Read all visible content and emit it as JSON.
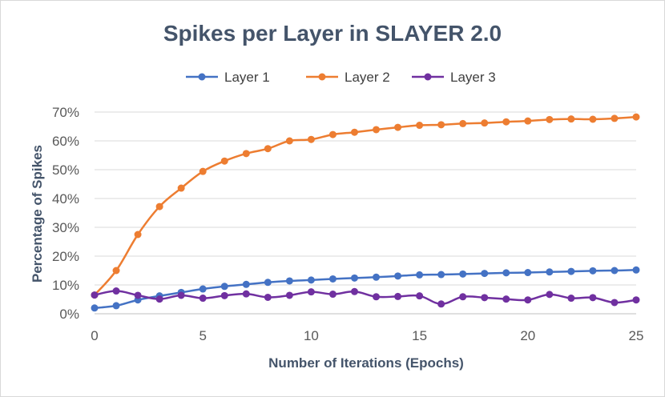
{
  "chart_data": {
    "type": "line",
    "title": "Spikes per Layer in SLAYER 2.0",
    "xlabel": "Number of Iterations (Epochs)",
    "ylabel": "Percentage of Spikes",
    "x": [
      0,
      1,
      2,
      3,
      4,
      5,
      6,
      7,
      8,
      9,
      10,
      11,
      12,
      13,
      14,
      15,
      16,
      17,
      18,
      19,
      20,
      21,
      22,
      23,
      24,
      25
    ],
    "xlim": [
      0,
      25
    ],
    "ylim": [
      0,
      70
    ],
    "xticks": [
      0,
      5,
      10,
      15,
      20,
      25
    ],
    "xtick_labels": [
      "0",
      "5",
      "10",
      "15",
      "20",
      "25"
    ],
    "yticks": [
      0,
      10,
      20,
      30,
      40,
      50,
      60,
      70
    ],
    "ytick_labels": [
      "0%",
      "10%",
      "20%",
      "30%",
      "40%",
      "50%",
      "60%",
      "70%"
    ],
    "grid": "horizontal",
    "legend_position": "top",
    "series": [
      {
        "name": "Layer 1",
        "color": "#4472c4",
        "values": [
          2.0,
          2.8,
          4.8,
          6.2,
          7.4,
          8.6,
          9.5,
          10.2,
          10.9,
          11.4,
          11.7,
          12.1,
          12.4,
          12.7,
          13.1,
          13.5,
          13.6,
          13.8,
          14.0,
          14.2,
          14.3,
          14.5,
          14.7,
          14.9,
          15.0,
          15.2
        ]
      },
      {
        "name": "Layer 2",
        "color": "#ed7d31",
        "values": [
          6.5,
          15.0,
          27.5,
          37.2,
          43.6,
          49.4,
          53.0,
          55.6,
          57.3,
          60.0,
          60.5,
          62.2,
          63.0,
          63.9,
          64.7,
          65.4,
          65.6,
          66.0,
          66.2,
          66.6,
          66.9,
          67.4,
          67.6,
          67.5,
          67.8,
          68.3
        ]
      },
      {
        "name": "Layer 3",
        "color": "#7030a0",
        "values": [
          6.5,
          7.9,
          6.4,
          5.1,
          6.4,
          5.4,
          6.3,
          6.9,
          5.7,
          6.4,
          7.6,
          6.8,
          7.7,
          5.9,
          6.0,
          6.2,
          3.4,
          5.9,
          5.6,
          5.1,
          4.8,
          6.7,
          5.4,
          5.6,
          3.9,
          4.8
        ]
      }
    ]
  }
}
